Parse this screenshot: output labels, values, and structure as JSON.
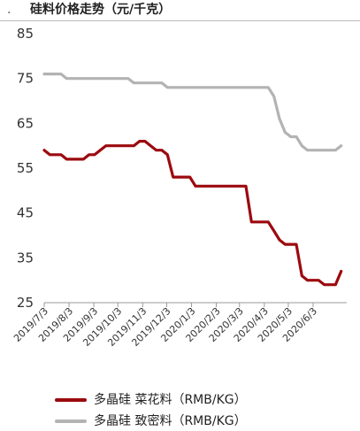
{
  "header": {
    "mark": ".",
    "title": "硅料价格走势（元/千克）"
  },
  "colors": {
    "series_1": "#9b0a0f",
    "series_2": "#b3b3b3",
    "axis": "#999999"
  },
  "chart_data": {
    "type": "line",
    "title": "硅料价格走势（元/千克）",
    "xlabel": "",
    "ylabel": "",
    "ylim": [
      25,
      85
    ],
    "yticks": [
      25,
      35,
      45,
      55,
      65,
      75,
      85
    ],
    "xlim": [
      "2019-07-03",
      "2020-07-15"
    ],
    "xtick_labels": [
      "2019/7/3",
      "2019/8/3",
      "2019/9/3",
      "2019/10/3",
      "2019/11/3",
      "2019/12/3",
      "2020/1/3",
      "2020/2/3",
      "2020/3/3",
      "2020/4/3",
      "2020/5/3",
      "2020/6/3"
    ],
    "xtick_dates": [
      "2019-07-03",
      "2019-08-03",
      "2019-09-03",
      "2019-10-03",
      "2019-11-03",
      "2019-12-03",
      "2020-01-03",
      "2020-02-03",
      "2020-03-03",
      "2020-04-03",
      "2020-05-03",
      "2020-06-03"
    ],
    "grid": false,
    "legend_position": "bottom",
    "series": [
      {
        "name": "多晶硅 菜花料（RMB/KG）",
        "color": "#9b0a0f",
        "points": [
          [
            "2019-07-03",
            59
          ],
          [
            "2019-07-10",
            58
          ],
          [
            "2019-07-17",
            58
          ],
          [
            "2019-07-24",
            58
          ],
          [
            "2019-07-31",
            57
          ],
          [
            "2019-08-07",
            57
          ],
          [
            "2019-08-14",
            57
          ],
          [
            "2019-08-21",
            57
          ],
          [
            "2019-08-28",
            58
          ],
          [
            "2019-09-04",
            58
          ],
          [
            "2019-09-11",
            59
          ],
          [
            "2019-09-18",
            60
          ],
          [
            "2019-09-25",
            60
          ],
          [
            "2019-10-02",
            60
          ],
          [
            "2019-10-09",
            60
          ],
          [
            "2019-10-16",
            60
          ],
          [
            "2019-10-23",
            60
          ],
          [
            "2019-10-30",
            61
          ],
          [
            "2019-11-06",
            61
          ],
          [
            "2019-11-13",
            60
          ],
          [
            "2019-11-20",
            59
          ],
          [
            "2019-11-27",
            59
          ],
          [
            "2019-12-04",
            58
          ],
          [
            "2019-12-11",
            53
          ],
          [
            "2019-12-18",
            53
          ],
          [
            "2019-12-25",
            53
          ],
          [
            "2020-01-01",
            53
          ],
          [
            "2020-01-08",
            51
          ],
          [
            "2020-01-15",
            51
          ],
          [
            "2020-01-22",
            51
          ],
          [
            "2020-01-29",
            51
          ],
          [
            "2020-02-05",
            51
          ],
          [
            "2020-02-12",
            51
          ],
          [
            "2020-02-19",
            51
          ],
          [
            "2020-02-26",
            51
          ],
          [
            "2020-03-04",
            51
          ],
          [
            "2020-03-11",
            51
          ],
          [
            "2020-03-18",
            43
          ],
          [
            "2020-03-25",
            43
          ],
          [
            "2020-04-01",
            43
          ],
          [
            "2020-04-08",
            43
          ],
          [
            "2020-04-15",
            41
          ],
          [
            "2020-04-22",
            39
          ],
          [
            "2020-04-29",
            38
          ],
          [
            "2020-05-06",
            38
          ],
          [
            "2020-05-13",
            38
          ],
          [
            "2020-05-20",
            31
          ],
          [
            "2020-05-27",
            30
          ],
          [
            "2020-06-03",
            30
          ],
          [
            "2020-06-10",
            30
          ],
          [
            "2020-06-17",
            29
          ],
          [
            "2020-06-24",
            29
          ],
          [
            "2020-07-01",
            29
          ],
          [
            "2020-07-08",
            32
          ]
        ]
      },
      {
        "name": "多晶硅 致密料（RMB/KG）",
        "color": "#b3b3b3",
        "points": [
          [
            "2019-07-03",
            76
          ],
          [
            "2019-07-10",
            76
          ],
          [
            "2019-07-17",
            76
          ],
          [
            "2019-07-24",
            76
          ],
          [
            "2019-07-31",
            75
          ],
          [
            "2019-08-07",
            75
          ],
          [
            "2019-08-14",
            75
          ],
          [
            "2019-08-21",
            75
          ],
          [
            "2019-08-28",
            75
          ],
          [
            "2019-09-04",
            75
          ],
          [
            "2019-09-11",
            75
          ],
          [
            "2019-09-18",
            75
          ],
          [
            "2019-09-25",
            75
          ],
          [
            "2019-10-02",
            75
          ],
          [
            "2019-10-09",
            75
          ],
          [
            "2019-10-16",
            75
          ],
          [
            "2019-10-23",
            74
          ],
          [
            "2019-10-30",
            74
          ],
          [
            "2019-11-06",
            74
          ],
          [
            "2019-11-13",
            74
          ],
          [
            "2019-11-20",
            74
          ],
          [
            "2019-11-27",
            74
          ],
          [
            "2019-12-04",
            73
          ],
          [
            "2019-12-11",
            73
          ],
          [
            "2019-12-18",
            73
          ],
          [
            "2019-12-25",
            73
          ],
          [
            "2020-01-01",
            73
          ],
          [
            "2020-01-08",
            73
          ],
          [
            "2020-01-15",
            73
          ],
          [
            "2020-01-22",
            73
          ],
          [
            "2020-01-29",
            73
          ],
          [
            "2020-02-05",
            73
          ],
          [
            "2020-02-12",
            73
          ],
          [
            "2020-02-19",
            73
          ],
          [
            "2020-02-26",
            73
          ],
          [
            "2020-03-04",
            73
          ],
          [
            "2020-03-11",
            73
          ],
          [
            "2020-03-18",
            73
          ],
          [
            "2020-03-25",
            73
          ],
          [
            "2020-04-01",
            73
          ],
          [
            "2020-04-08",
            73
          ],
          [
            "2020-04-15",
            71
          ],
          [
            "2020-04-22",
            66
          ],
          [
            "2020-04-29",
            63
          ],
          [
            "2020-05-06",
            62
          ],
          [
            "2020-05-13",
            62
          ],
          [
            "2020-05-20",
            60
          ],
          [
            "2020-05-27",
            59
          ],
          [
            "2020-06-03",
            59
          ],
          [
            "2020-06-10",
            59
          ],
          [
            "2020-06-17",
            59
          ],
          [
            "2020-06-24",
            59
          ],
          [
            "2020-07-01",
            59
          ],
          [
            "2020-07-08",
            60
          ]
        ]
      }
    ]
  }
}
